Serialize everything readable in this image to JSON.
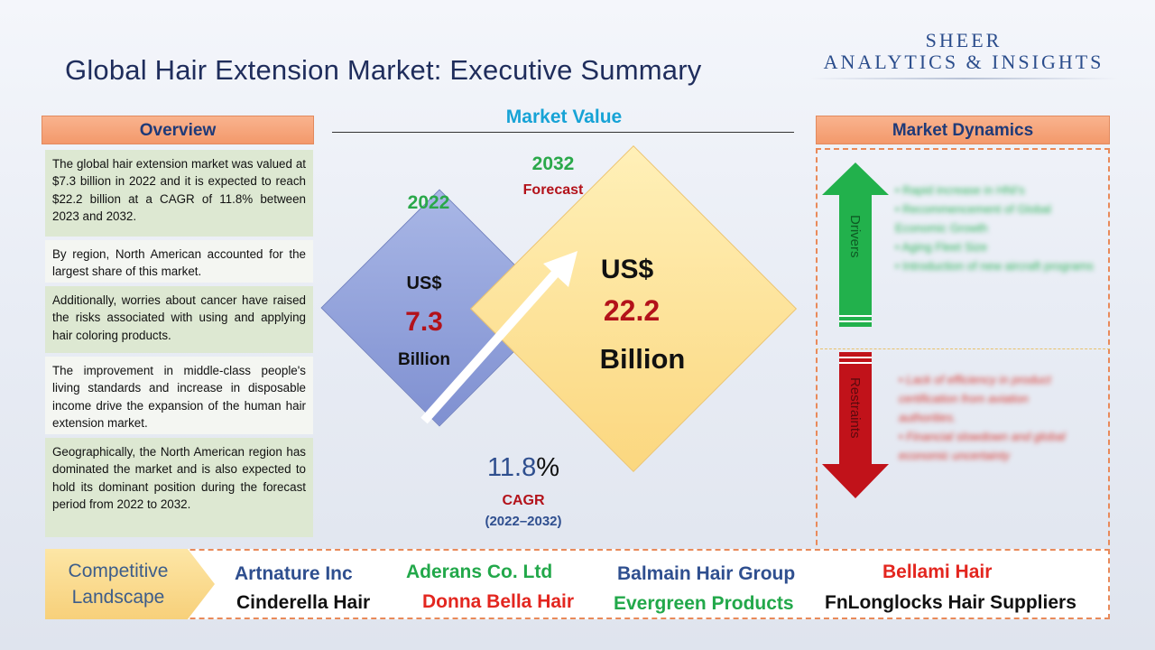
{
  "title": "Global Hair Extension Market: Executive Summary",
  "brand": {
    "line1": "SHEER",
    "line2": "ANALYTICS & INSIGHTS"
  },
  "overview": {
    "heading": "Overview",
    "paragraphs": [
      "The global hair extension market was valued at $7.3 billion in 2022 and it is expected to reach $22.2 billion at a CAGR of 11.8% between 2023 and 2032.",
      "By region, North American accounted for the largest share of this market.",
      "Additionally, worries about cancer have raised the risks associated with using and applying hair coloring products.",
      "The improvement in middle-class people's living standards and increase in disposable income drive the expansion of the human hair extension market.",
      "Geographically, the North American region has dominated the market and is also expected to hold its dominant position during the forecast period from 2022 to 2032."
    ]
  },
  "market_value": {
    "heading": "Market Value",
    "y2022": {
      "year": "2022",
      "currency": "US$",
      "value": "7.3",
      "unit": "Billion"
    },
    "y2032": {
      "year": "2032",
      "note": "Forecast",
      "currency": "US$",
      "value": "22.2",
      "unit": "Billion"
    },
    "cagr": {
      "value": "11.8",
      "suffix": "%",
      "label": "CAGR",
      "period": "(2022–2032)"
    }
  },
  "dynamics": {
    "heading": "Market Dynamics",
    "drivers_label": "Drivers",
    "restraints_label": "Restraints",
    "drivers": [
      "Rapid increase in HNI's",
      "Recommencement of Global Economic Growth",
      "Aging Fleet Size",
      "Introduction of new aircraft programs"
    ],
    "restraints": [
      "Lack of efficiency in product certification from aviation authorities.",
      "Financial slowdown and global economic uncertainty"
    ]
  },
  "competitive": {
    "label_line1": "Competitive",
    "label_line2": "Landscape",
    "companies": [
      {
        "name": "Artnature Inc",
        "color": "#2f4f8f"
      },
      {
        "name": "Aderans Co. Ltd",
        "color": "#22a84a"
      },
      {
        "name": "Balmain Hair Group",
        "color": "#2f4f8f"
      },
      {
        "name": "Bellami Hair",
        "color": "#e3261f"
      },
      {
        "name": "Cinderella Hair",
        "color": "#111111"
      },
      {
        "name": "Donna Bella Hair",
        "color": "#e3261f"
      },
      {
        "name": "Evergreen Products",
        "color": "#22a84a"
      },
      {
        "name": "FnLonglocks Hair Suppliers",
        "color": "#111111"
      }
    ]
  },
  "colors": {
    "green_value": "#2aa84a",
    "red_value": "#b3121a",
    "navy": "#1f2d5c"
  }
}
